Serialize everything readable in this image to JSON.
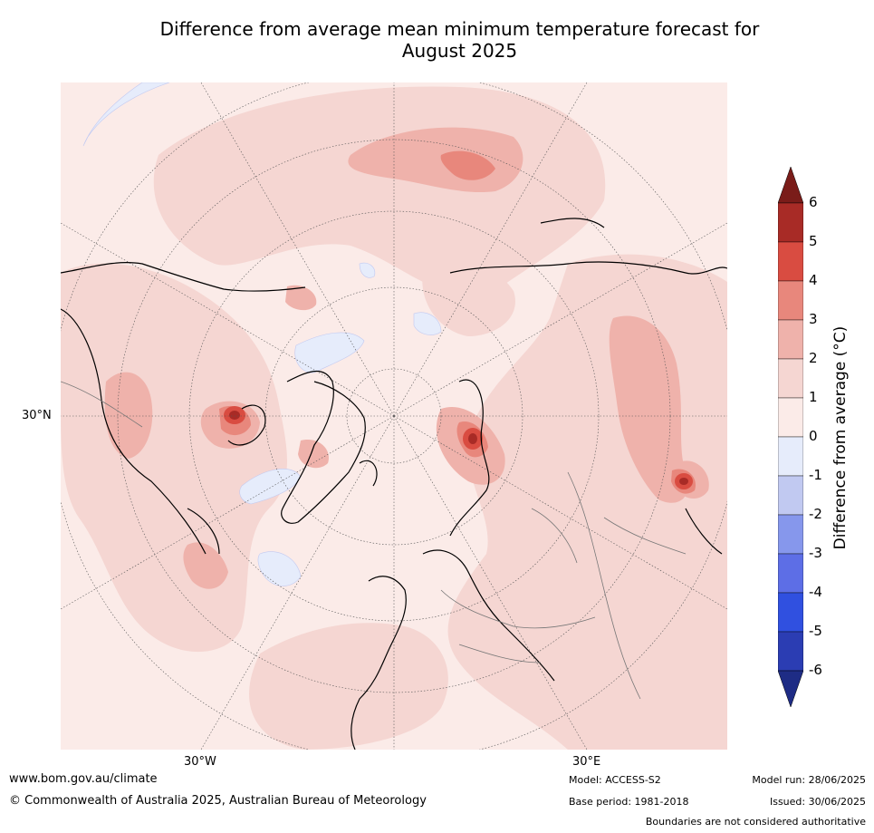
{
  "title_line1": "Difference from average mean minimum temperature forecast for",
  "title_line2": "August 2025",
  "map": {
    "lat_labels": [
      "30°N"
    ],
    "lon_labels": [
      "30°W",
      "30°E"
    ]
  },
  "colorbar": {
    "label": "Difference from average (°C)",
    "ticks": [
      "6",
      "5",
      "4",
      "3",
      "2",
      "1",
      "0",
      "-1",
      "-2",
      "-3",
      "-4",
      "-5",
      "-6"
    ],
    "colors": [
      "#a82b26",
      "#d94c41",
      "#e8877c",
      "#efb2ab",
      "#f5d6d2",
      "#fbebe8",
      "#e6ecfb",
      "#c1c9f1",
      "#8697ec",
      "#5d6ee6",
      "#3050e0",
      "#2b3db3"
    ],
    "over_color": "#7a1c19",
    "under_color": "#1e2c85"
  },
  "footer": {
    "website": "www.bom.gov.au/climate",
    "copyright": "© Commonwealth of Australia 2025, Australian Bureau of Meteorology",
    "model": "Model: ACCESS-S2",
    "base_period": "Base period: 1981-2018",
    "model_run": "Model run: 28/06/2025",
    "issued": "Issued: 30/06/2025",
    "disclaimer": "Boundaries are not considered authoritative"
  }
}
